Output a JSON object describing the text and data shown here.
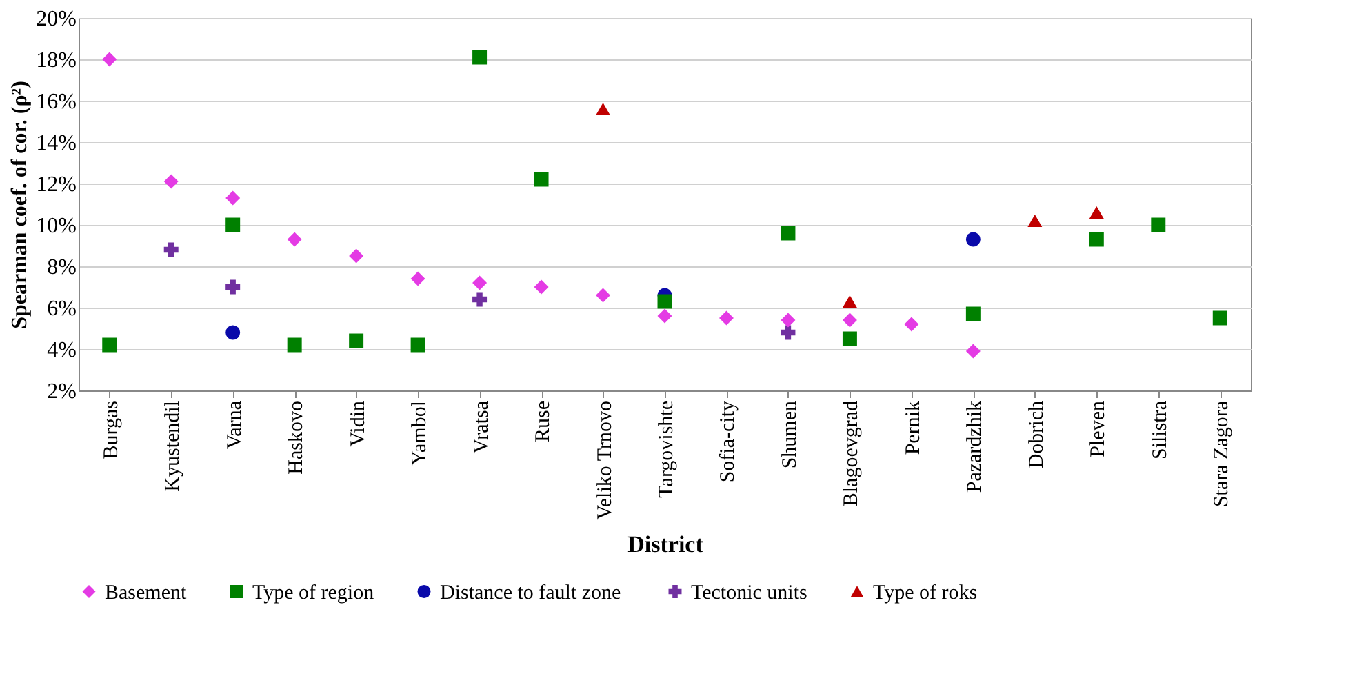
{
  "chart_data": {
    "type": "scatter",
    "xlabel": "District",
    "ylabel": "Spearman coef. of cor. (ρ²)",
    "categories": [
      "Burgas",
      "Kyustendil",
      "Varna",
      "Haskovo",
      "Vidin",
      "Yambol",
      "Vratsa",
      "Ruse",
      "Veliko Trnovo",
      "Targovishte",
      "Sofia-city",
      "Shumen",
      "Blagoevgrad",
      "Pernik",
      "Pazardzhik",
      "Dobrich",
      "Pleven",
      "Silistra",
      "Stara Zagora"
    ],
    "series": [
      {
        "name": "Basement",
        "color": "#e43be4",
        "marker": "diamond",
        "values": [
          18.0,
          12.1,
          11.3,
          9.3,
          8.5,
          7.4,
          7.2,
          7.0,
          6.6,
          5.6,
          5.5,
          5.4,
          5.4,
          5.2,
          3.9,
          null,
          null,
          null,
          null
        ]
      },
      {
        "name": "Type of region",
        "color": "#008000",
        "marker": "square",
        "values": [
          4.2,
          null,
          10.0,
          4.2,
          4.4,
          4.2,
          18.1,
          12.2,
          null,
          6.3,
          null,
          9.6,
          4.5,
          null,
          5.7,
          null,
          9.3,
          10.0,
          5.5
        ]
      },
      {
        "name": "Distance to fault  zone",
        "color": "#0a0aaa",
        "marker": "circle",
        "values": [
          null,
          null,
          4.8,
          null,
          null,
          null,
          null,
          null,
          null,
          6.6,
          null,
          null,
          null,
          null,
          9.3,
          null,
          null,
          null,
          null
        ]
      },
      {
        "name": "Tectonic units",
        "color": "#7030a0",
        "marker": "cross",
        "values": [
          null,
          8.8,
          7.0,
          null,
          null,
          null,
          6.4,
          null,
          null,
          null,
          null,
          4.8,
          null,
          null,
          null,
          null,
          null,
          null,
          null
        ]
      },
      {
        "name": "Type of roks",
        "color": "#c00000",
        "marker": "triangle",
        "values": [
          null,
          null,
          null,
          null,
          null,
          null,
          null,
          null,
          15.6,
          null,
          null,
          null,
          6.3,
          null,
          null,
          10.2,
          10.6,
          null,
          null
        ]
      }
    ],
    "ylim": [
      2,
      20
    ],
    "yticks": [
      {
        "value": 2,
        "label": "2%"
      },
      {
        "value": 4,
        "label": "4%"
      },
      {
        "value": 6,
        "label": "6%"
      },
      {
        "value": 8,
        "label": "8%"
      },
      {
        "value": 10,
        "label": "10%"
      },
      {
        "value": 12,
        "label": "12%"
      },
      {
        "value": 14,
        "label": "14%"
      },
      {
        "value": 16,
        "label": "16%"
      },
      {
        "value": 18,
        "label": "18%"
      },
      {
        "value": 20,
        "label": "20%"
      }
    ],
    "grid": "y",
    "legend": "bottom"
  }
}
